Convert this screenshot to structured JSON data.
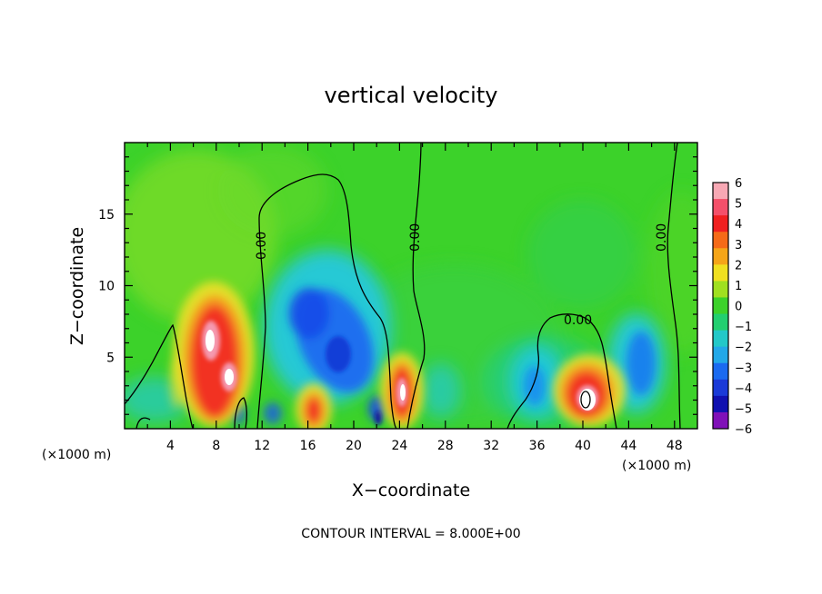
{
  "chart_data": {
    "type": "heatmap",
    "title": "vertical velocity",
    "xlabel": "X−coordinate",
    "ylabel": "Z−coordinate",
    "x_unit_left": "(×1000 m)",
    "x_unit_right": "(×1000 m)",
    "xlim": [
      0,
      50
    ],
    "ylim": [
      0,
      20
    ],
    "x_ticks": [
      "4",
      "8",
      "12",
      "16",
      "20",
      "24",
      "28",
      "32",
      "36",
      "40",
      "44",
      "48"
    ],
    "y_ticks": [
      "5",
      "10",
      "15"
    ],
    "footer": "CONTOUR INTERVAL = 8.000E+00",
    "contour_labels": [
      "0.00",
      "0.00",
      "0.00",
      "0.00"
    ],
    "colorbar": {
      "labels": [
        "6",
        "5",
        "4",
        "3",
        "2",
        "1",
        "0",
        "−1",
        "−2",
        "−3",
        "−4",
        "−5",
        "−6"
      ],
      "range": [
        -6,
        6
      ]
    },
    "features": [
      {
        "kind": "updraft",
        "x": 8.3,
        "z": 4.5,
        "value": 6
      },
      {
        "kind": "updraft",
        "x": 16.5,
        "z": 1.5,
        "value": 5
      },
      {
        "kind": "updraft",
        "x": 24.2,
        "z": 2.8,
        "value": 6
      },
      {
        "kind": "updraft",
        "x": 40.4,
        "z": 2.4,
        "value": 6
      },
      {
        "kind": "downdraft",
        "x": 18.2,
        "z": 5.2,
        "value": -4
      },
      {
        "kind": "downdraft",
        "x": 44.7,
        "z": 4.3,
        "value": -3
      },
      {
        "kind": "downdraft",
        "x": 35.8,
        "z": 3.0,
        "value": -3
      }
    ]
  }
}
